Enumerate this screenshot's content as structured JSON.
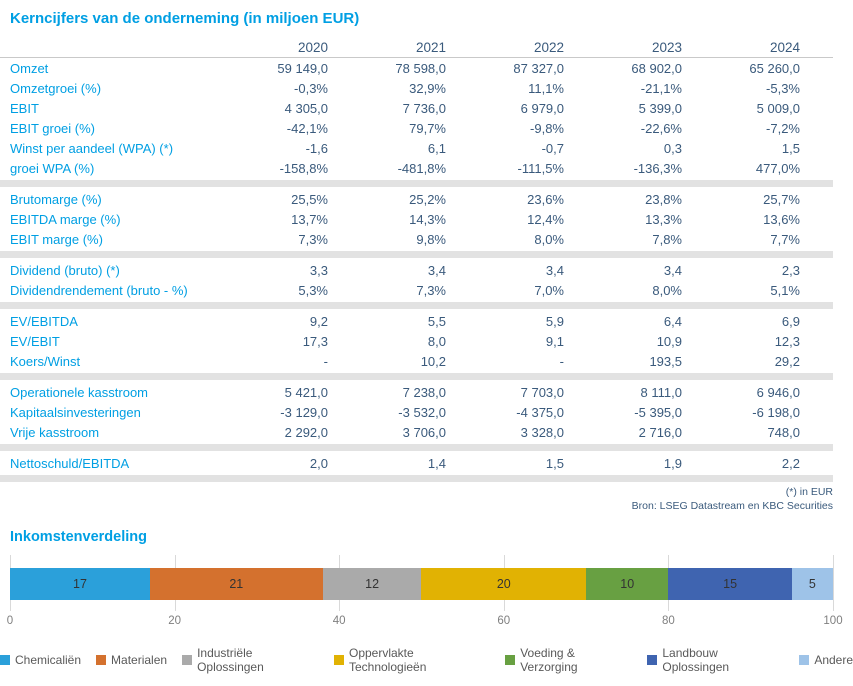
{
  "table": {
    "title": "Kerncijfers van de onderneming (in miljoen EUR)",
    "years": [
      "2020",
      "2021",
      "2022",
      "2023",
      "2024"
    ],
    "groups": [
      {
        "rows": [
          {
            "label": "Omzet",
            "values": [
              "59 149,0",
              "78 598,0",
              "87 327,0",
              "68 902,0",
              "65 260,0"
            ]
          },
          {
            "label": "Omzetgroei (%)",
            "values": [
              "-0,3%",
              "32,9%",
              "11,1%",
              "-21,1%",
              "-5,3%"
            ]
          },
          {
            "label": "EBIT",
            "values": [
              "4 305,0",
              "7 736,0",
              "6 979,0",
              "5 399,0",
              "5 009,0"
            ]
          },
          {
            "label": "EBIT groei (%)",
            "values": [
              "-42,1%",
              "79,7%",
              "-9,8%",
              "-22,6%",
              "-7,2%"
            ]
          },
          {
            "label": "Winst per aandeel (WPA) (*)",
            "values": [
              "-1,6",
              "6,1",
              "-0,7",
              "0,3",
              "1,5"
            ]
          },
          {
            "label": "groei WPA (%)",
            "values": [
              "-158,8%",
              "-481,8%",
              "-111,5%",
              "-136,3%",
              "477,0%"
            ]
          }
        ]
      },
      {
        "rows": [
          {
            "label": "Brutomarge (%)",
            "values": [
              "25,5%",
              "25,2%",
              "23,6%",
              "23,8%",
              "25,7%"
            ]
          },
          {
            "label": "EBITDA marge (%)",
            "values": [
              "13,7%",
              "14,3%",
              "12,4%",
              "13,3%",
              "13,6%"
            ]
          },
          {
            "label": "EBIT marge (%)",
            "values": [
              "7,3%",
              "9,8%",
              "8,0%",
              "7,8%",
              "7,7%"
            ]
          }
        ]
      },
      {
        "rows": [
          {
            "label": "Dividend (bruto) (*)",
            "values": [
              "3,3",
              "3,4",
              "3,4",
              "3,4",
              "2,3"
            ]
          },
          {
            "label": "Dividendrendement (bruto - %)",
            "values": [
              "5,3%",
              "7,3%",
              "7,0%",
              "8,0%",
              "5,1%"
            ]
          }
        ]
      },
      {
        "rows": [
          {
            "label": "EV/EBITDA",
            "values": [
              "9,2",
              "5,5",
              "5,9",
              "6,4",
              "6,9"
            ]
          },
          {
            "label": "EV/EBIT",
            "values": [
              "17,3",
              "8,0",
              "9,1",
              "10,9",
              "12,3"
            ]
          },
          {
            "label": "Koers/Winst",
            "values": [
              "-",
              "10,2",
              "-",
              "193,5",
              "29,2"
            ]
          }
        ]
      },
      {
        "rows": [
          {
            "label": "Operationele kasstroom",
            "values": [
              "5 421,0",
              "7 238,0",
              "7 703,0",
              "8 111,0",
              "6 946,0"
            ]
          },
          {
            "label": "Kapitaalsinvesteringen",
            "values": [
              "-3 129,0",
              "-3 532,0",
              "-4 375,0",
              "-5 395,0",
              "-6 198,0"
            ]
          },
          {
            "label": "Vrije kasstroom",
            "values": [
              "2 292,0",
              "3 706,0",
              "3 328,0",
              "2 716,0",
              "748,0"
            ]
          }
        ]
      },
      {
        "rows": [
          {
            "label": "Nettoschuld/EBITDA",
            "values": [
              "2,0",
              "1,4",
              "1,5",
              "1,9",
              "2,2"
            ]
          }
        ]
      }
    ],
    "footnotes": [
      "(*) in EUR",
      "Bron: LSEG Datastream en KBC Securities"
    ]
  },
  "chart_data": {
    "type": "bar",
    "subtype": "stacked-horizontal",
    "title": "Inkomstenverdeling",
    "series": [
      {
        "name": "Chemicaliën",
        "value": 17,
        "color": "#2BA0DA"
      },
      {
        "name": "Materialen",
        "value": 21,
        "color": "#D4712E"
      },
      {
        "name": "Industriële Oplossingen",
        "value": 12,
        "color": "#AAAAAA"
      },
      {
        "name": "Oppervlakte Technologieën",
        "value": 20,
        "color": "#E1B203"
      },
      {
        "name": "Voeding & Verzorging",
        "value": 10,
        "color": "#68A042"
      },
      {
        "name": "Landbouw Oplossingen",
        "value": 15,
        "color": "#3F64B0"
      },
      {
        "name": "Andere",
        "value": 5,
        "color": "#9EC3E8"
      }
    ],
    "x_ticks": [
      0,
      20,
      40,
      60,
      80,
      100
    ],
    "xlim": [
      0,
      100
    ],
    "grid": true,
    "legend_position": "bottom",
    "colors": {
      "accent_blue": "#009FE3",
      "value_navy": "#3A5A7C",
      "separator_grey": "#E2E2E2",
      "gridline_grey": "#D9D9D9",
      "axis_label_grey": "#7F7F7F",
      "legend_text_grey": "#595959"
    }
  }
}
